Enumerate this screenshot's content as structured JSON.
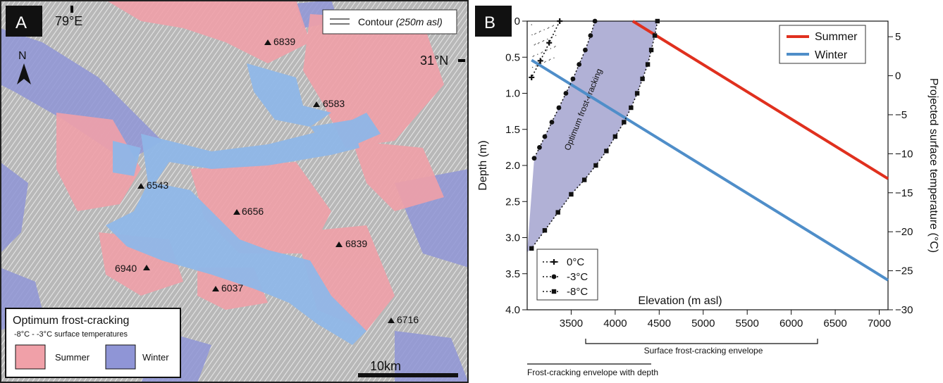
{
  "panel_a": {
    "letter": "A",
    "lon_label": "79°E",
    "lat_label": "31°N",
    "north_label": "N",
    "contour_label": "Contour",
    "contour_unit": "(250m asl)",
    "peaks": [
      "6839",
      "6583",
      "6543",
      "6656",
      "6839",
      "6940",
      "6037",
      "6716"
    ],
    "legend": {
      "title": "Optimum frost-cracking",
      "subtitle": "-8°C - -3°C  surface temperatures",
      "summer": "Summer",
      "winter": "Winter"
    },
    "scale_label": "10km",
    "colors": {
      "summer": "#f0a0a8",
      "winter": "#8f95d6",
      "ice": "#8fb7e8"
    }
  },
  "panel_b": {
    "letter": "B",
    "below_labels": {
      "surface_envelope": "Surface frost-cracking envelope",
      "depth_envelope": "Frost-cracking envelope with depth"
    },
    "shaded_label": "Optimum frost-cracking"
  },
  "chart_data": {
    "type": "line",
    "xlabel": "Elevation (m asl)",
    "ylabel": "Depth (m)",
    "y2label": "Projected surface temperature (°C)",
    "xlim": [
      3000,
      7100
    ],
    "ylim": [
      0,
      4.0
    ],
    "y2lim": [
      7,
      -30
    ],
    "x_ticks": [
      3500,
      4000,
      4500,
      5000,
      5500,
      6000,
      6500,
      7000
    ],
    "y_ticks": [
      0,
      0.5,
      1.0,
      1.5,
      2.0,
      2.5,
      3.0,
      3.5,
      4.0
    ],
    "y_tick_labels": [
      "0",
      "0.5",
      "1.0",
      "1.5",
      "2.0",
      "2.5",
      "3.0",
      "3.5",
      "4.0"
    ],
    "y2_ticks": [
      5,
      0,
      -5,
      -10,
      -15,
      -20,
      -25,
      -30
    ],
    "temperature_series": [
      {
        "name": "Summer",
        "color": "#e0301e",
        "x": [
          4200,
          7100
        ],
        "temp": [
          7,
          -13.2
        ]
      },
      {
        "name": "Winter",
        "color": "#4f8ec9",
        "x": [
          3050,
          7100
        ],
        "temp": [
          2,
          -26.2
        ]
      }
    ],
    "depth_series": [
      {
        "name": "0°C",
        "marker": "plus",
        "x": [
          3370,
          3250,
          3150,
          3050
        ],
        "depth": [
          0,
          0.3,
          0.55,
          0.78
        ]
      },
      {
        "name": "-3°C",
        "marker": "circle",
        "x": [
          3770,
          3720,
          3660,
          3590,
          3520,
          3440,
          3360,
          3280,
          3200,
          3140,
          3080
        ],
        "depth": [
          0,
          0.2,
          0.4,
          0.6,
          0.8,
          1.0,
          1.2,
          1.4,
          1.6,
          1.75,
          1.9
        ]
      },
      {
        "name": "-8°C",
        "marker": "square",
        "x": [
          4480,
          4450,
          4410,
          4370,
          4310,
          4250,
          4180,
          4100,
          4000,
          3900,
          3780,
          3650,
          3500,
          3350,
          3200,
          3050
        ],
        "depth": [
          0,
          0.2,
          0.4,
          0.6,
          0.8,
          1.0,
          1.2,
          1.4,
          1.6,
          1.8,
          2.0,
          2.2,
          2.4,
          2.65,
          2.9,
          3.15
        ]
      }
    ]
  }
}
